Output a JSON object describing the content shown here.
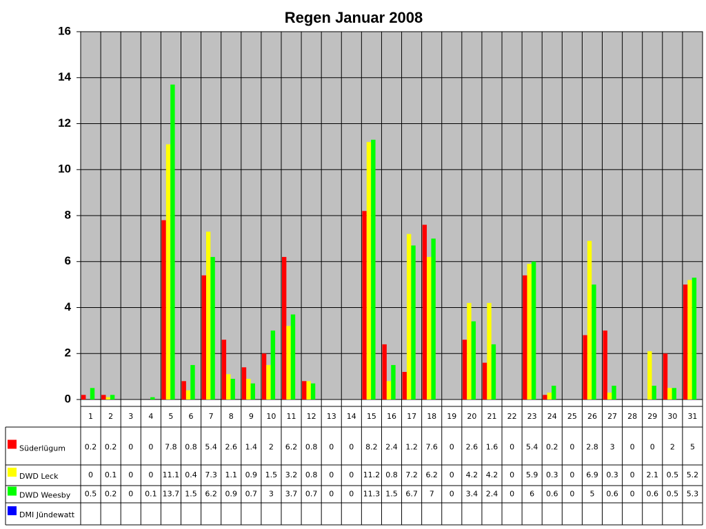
{
  "chart_data": {
    "type": "bar",
    "title": "Regen Januar 2008",
    "categories": [
      "1",
      "2",
      "3",
      "4",
      "5",
      "6",
      "7",
      "8",
      "9",
      "10",
      "11",
      "12",
      "13",
      "14",
      "15",
      "16",
      "17",
      "18",
      "19",
      "20",
      "21",
      "22",
      "23",
      "24",
      "25",
      "26",
      "27",
      "28",
      "29",
      "30",
      "31"
    ],
    "series": [
      {
        "name": "Süderlügum",
        "color": "#ff0000",
        "values": [
          0.2,
          0.2,
          0,
          0,
          7.8,
          0.8,
          5.4,
          2.6,
          1.4,
          2,
          6.2,
          0.8,
          0,
          0,
          8.2,
          2.4,
          1.2,
          7.6,
          0,
          2.6,
          1.6,
          0,
          5.4,
          0.2,
          0,
          2.8,
          3,
          0,
          0,
          2,
          5
        ]
      },
      {
        "name": "DWD Leck",
        "color": "#ffff00",
        "values": [
          0,
          0.1,
          0,
          0,
          11.1,
          0.4,
          7.3,
          1.1,
          0.9,
          1.5,
          3.2,
          0.8,
          0,
          0,
          11.2,
          0.8,
          7.2,
          6.2,
          0,
          4.2,
          4.2,
          0,
          5.9,
          0.3,
          0,
          6.9,
          0.3,
          0,
          2.1,
          0.5,
          5.2
        ]
      },
      {
        "name": "DWD Weesby",
        "color": "#00ff00",
        "values": [
          0.5,
          0.2,
          0,
          0.1,
          13.7,
          1.5,
          6.2,
          0.9,
          0.7,
          3,
          3.7,
          0.7,
          0,
          0,
          11.3,
          1.5,
          6.7,
          7,
          0,
          3.4,
          2.4,
          0,
          6,
          0.6,
          0,
          5,
          0.6,
          0,
          0.6,
          0.5,
          5.3
        ]
      },
      {
        "name": "DMI Jündewatt",
        "color": "#0000ff",
        "values": [
          null,
          null,
          null,
          null,
          null,
          null,
          null,
          null,
          null,
          null,
          null,
          null,
          null,
          null,
          null,
          null,
          null,
          null,
          null,
          null,
          null,
          null,
          null,
          null,
          null,
          null,
          null,
          null,
          null,
          null,
          null
        ]
      }
    ],
    "ylim": [
      0,
      16
    ],
    "yticks": [
      0,
      2,
      4,
      6,
      8,
      10,
      12,
      14,
      16
    ],
    "grid": true,
    "plot_background": "#c0c0c0"
  }
}
